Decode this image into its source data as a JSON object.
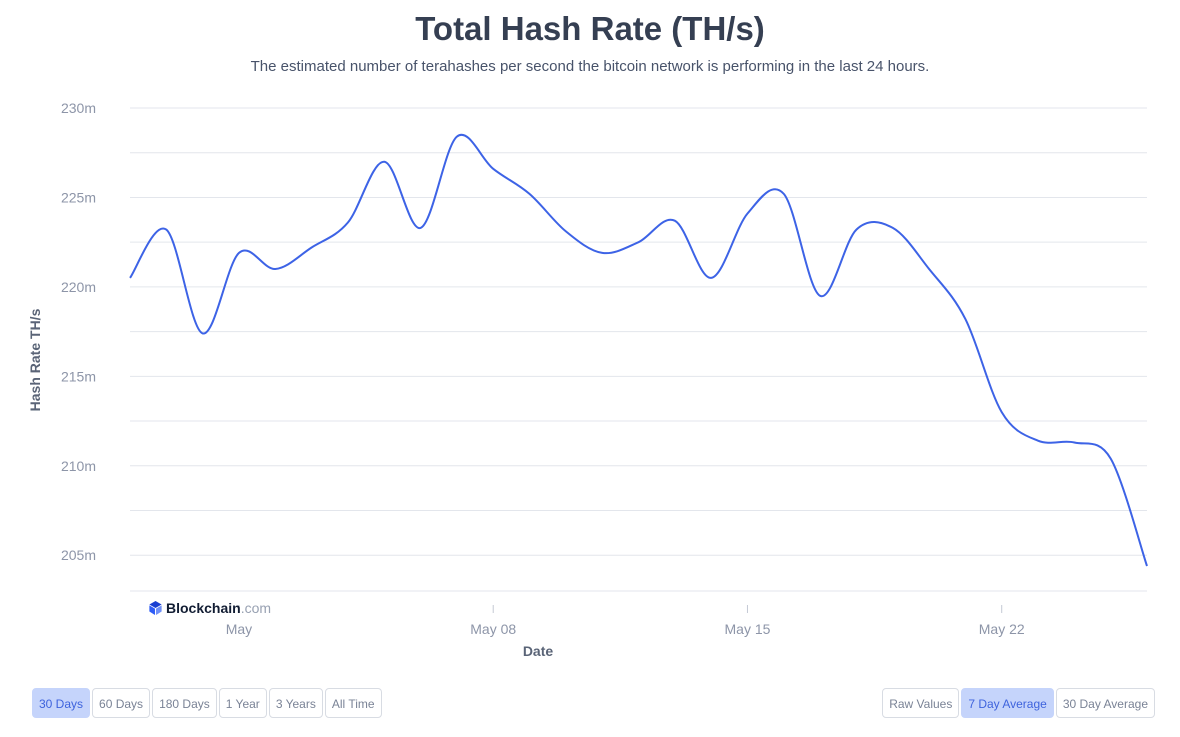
{
  "header": {
    "title": "Total Hash Rate (TH/s)",
    "subtitle": "The estimated number of terahashes per second the bitcoin network is performing in the last 24 hours."
  },
  "watermark": {
    "brand": "Blockchain",
    "domain": ".com"
  },
  "chart_data": {
    "type": "line",
    "title": "Total Hash Rate (TH/s)",
    "xlabel": "Date",
    "ylabel": "Hash Rate TH/s",
    "ylim": [
      203,
      230
    ],
    "xlim": [
      "2022-04-28",
      "2022-05-26"
    ],
    "y_ticks": [
      {
        "value": 205,
        "label": "205m"
      },
      {
        "value": 210,
        "label": "210m"
      },
      {
        "value": 215,
        "label": "215m"
      },
      {
        "value": 220,
        "label": "220m"
      },
      {
        "value": 225,
        "label": "225m"
      },
      {
        "value": 230,
        "label": "230m"
      }
    ],
    "x_ticks": [
      {
        "date": "2022-05-01",
        "label": "May"
      },
      {
        "date": "2022-05-08",
        "label": "May 08"
      },
      {
        "date": "2022-05-15",
        "label": "May 15"
      },
      {
        "date": "2022-05-22",
        "label": "May 22"
      }
    ],
    "grid": true,
    "line_color": "#3d63e6",
    "series": [
      {
        "values": [
          {
            "x": "2022-04-28",
            "y": 220.5
          },
          {
            "x": "2022-04-29",
            "y": 223.2
          },
          {
            "x": "2022-04-30",
            "y": 217.4
          },
          {
            "x": "2022-05-01",
            "y": 221.9
          },
          {
            "x": "2022-05-02",
            "y": 221.0
          },
          {
            "x": "2022-05-03",
            "y": 222.2
          },
          {
            "x": "2022-05-04",
            "y": 223.6
          },
          {
            "x": "2022-05-05",
            "y": 227.0
          },
          {
            "x": "2022-05-06",
            "y": 223.3
          },
          {
            "x": "2022-05-07",
            "y": 228.4
          },
          {
            "x": "2022-05-08",
            "y": 226.6
          },
          {
            "x": "2022-05-09",
            "y": 225.2
          },
          {
            "x": "2022-05-10",
            "y": 223.1
          },
          {
            "x": "2022-05-11",
            "y": 221.9
          },
          {
            "x": "2022-05-12",
            "y": 222.5
          },
          {
            "x": "2022-05-13",
            "y": 223.7
          },
          {
            "x": "2022-05-14",
            "y": 220.5
          },
          {
            "x": "2022-05-15",
            "y": 224.1
          },
          {
            "x": "2022-05-16",
            "y": 225.2
          },
          {
            "x": "2022-05-17",
            "y": 219.5
          },
          {
            "x": "2022-05-18",
            "y": 223.2
          },
          {
            "x": "2022-05-19",
            "y": 223.3
          },
          {
            "x": "2022-05-20",
            "y": 221.0
          },
          {
            "x": "2022-05-21",
            "y": 218.2
          },
          {
            "x": "2022-05-22",
            "y": 213.0
          },
          {
            "x": "2022-05-23",
            "y": 211.4
          },
          {
            "x": "2022-05-24",
            "y": 211.3
          },
          {
            "x": "2022-05-25",
            "y": 210.4
          },
          {
            "x": "2022-05-26",
            "y": 204.4
          }
        ]
      }
    ]
  },
  "timespan_buttons": [
    {
      "label": "30 Days",
      "active": true
    },
    {
      "label": "60 Days",
      "active": false
    },
    {
      "label": "180 Days",
      "active": false
    },
    {
      "label": "1 Year",
      "active": false
    },
    {
      "label": "3 Years",
      "active": false
    },
    {
      "label": "All Time",
      "active": false
    }
  ],
  "average_buttons": [
    {
      "label": "Raw Values",
      "active": false
    },
    {
      "label": "7 Day Average",
      "active": true
    },
    {
      "label": "30 Day Average",
      "active": false
    }
  ]
}
